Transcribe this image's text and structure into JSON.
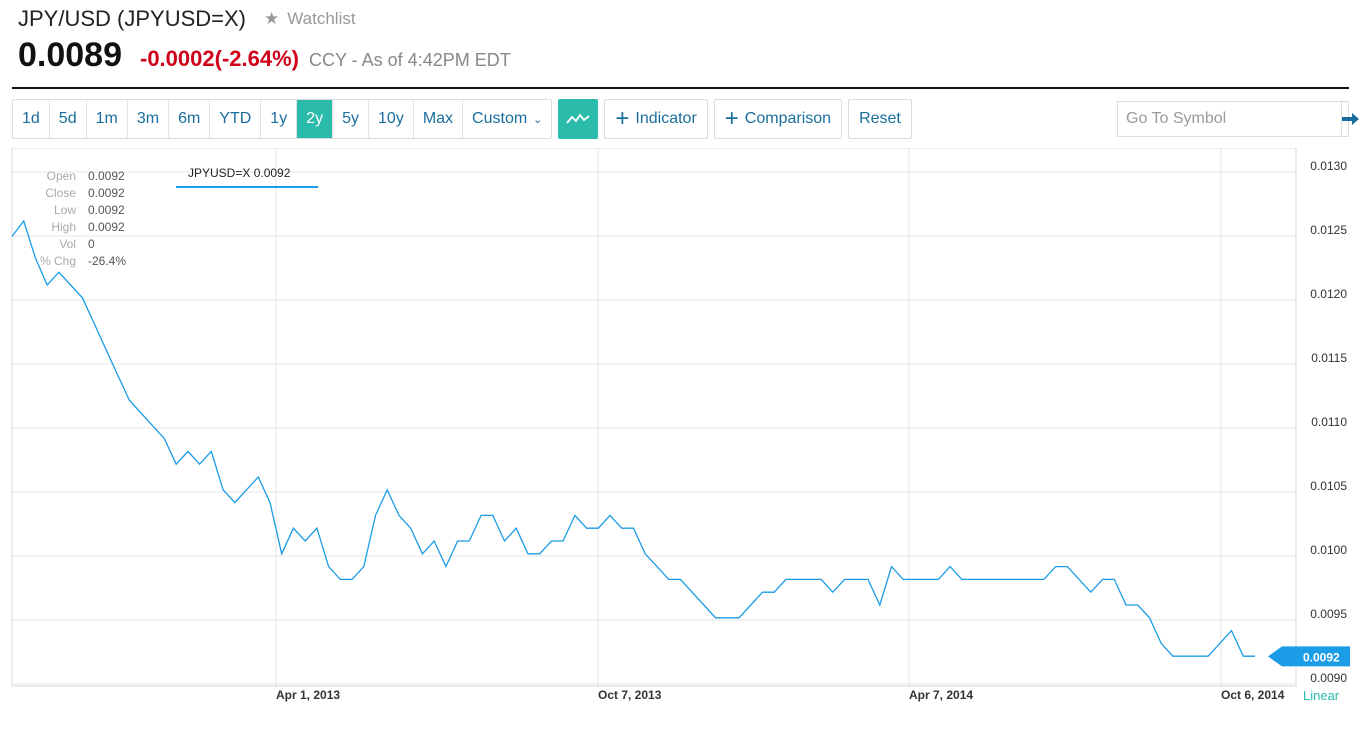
{
  "header": {
    "title": "JPY/USD (JPYUSD=X)",
    "watchlist_label": "Watchlist",
    "price": "0.0089",
    "change": "-0.0002",
    "change_pct": "(-2.64%)",
    "meta": "CCY - As of 4:42PM EDT"
  },
  "toolbar": {
    "ranges": [
      "1d",
      "5d",
      "1m",
      "3m",
      "6m",
      "YTD",
      "1y",
      "2y",
      "5y",
      "10y",
      "Max"
    ],
    "active_range": "2y",
    "custom_label": "Custom",
    "indicator_label": "Indicator",
    "comparison_label": "Comparison",
    "reset_label": "Reset",
    "goto_placeholder": "Go To Symbol"
  },
  "tooltip": {
    "series_label": "JPYUSD=X 0.0092",
    "open_label": "Open",
    "open": "0.0092",
    "close_label": "Close",
    "close": "0.0092",
    "low_label": "Low",
    "low": "0.0092",
    "high_label": "High",
    "high": "0.0092",
    "vol_label": "Vol",
    "vol": "0",
    "pctchg_label": "% Chg",
    "pctchg": "-26.4%"
  },
  "colors": {
    "line": "#1a9ce6",
    "accent": "#2bbbaa",
    "negative": "#d0021b"
  },
  "chart_data": {
    "type": "line",
    "y_ticks": [
      "0.0130",
      "0.0125",
      "0.0120",
      "0.0115",
      "0.0110",
      "0.0105",
      "0.0100",
      "0.0095",
      "0.0090"
    ],
    "x_ticks": [
      "Apr 1, 2013",
      "Oct 7, 2013",
      "Apr 7, 2014",
      "Oct 6, 2014"
    ],
    "ylim": [
      0.0089,
      0.0132
    ],
    "last_value_label": "0.0092",
    "scale_label": "Linear",
    "grid": true,
    "series": [
      {
        "values": [
          0.01245,
          0.01257,
          0.01228,
          0.01207,
          0.01217,
          0.01207,
          0.01197,
          0.01177,
          0.01157,
          0.01137,
          0.01117,
          0.01107,
          0.01097,
          0.01087,
          0.01067,
          0.01077,
          0.01067,
          0.01077,
          0.01047,
          0.01037,
          0.01047,
          0.01057,
          0.01037,
          0.00997,
          0.01017,
          0.01007,
          0.01017,
          0.00987,
          0.00977,
          0.00977,
          0.00987,
          0.01027,
          0.01047,
          0.01027,
          0.01017,
          0.00997,
          0.01007,
          0.00987,
          0.01007,
          0.01007,
          0.01027,
          0.01027,
          0.01007,
          0.01017,
          0.00997,
          0.00997,
          0.01007,
          0.01007,
          0.01027,
          0.01017,
          0.01017,
          0.01027,
          0.01017,
          0.01017,
          0.00997,
          0.00987,
          0.00977,
          0.00977,
          0.00967,
          0.00957,
          0.00947,
          0.00947,
          0.00947,
          0.00957,
          0.00967,
          0.00967,
          0.00977,
          0.00977,
          0.00977,
          0.00977,
          0.00967,
          0.00977,
          0.00977,
          0.00977,
          0.00957,
          0.00987,
          0.00977,
          0.00977,
          0.00977,
          0.00977,
          0.00987,
          0.00977,
          0.00977,
          0.00977,
          0.00977,
          0.00977,
          0.00977,
          0.00977,
          0.00977,
          0.00987,
          0.00987,
          0.00977,
          0.00967,
          0.00977,
          0.00977,
          0.00957,
          0.00957,
          0.00947,
          0.00927,
          0.00917,
          0.00917,
          0.00917,
          0.00917,
          0.00927,
          0.00937,
          0.00917,
          0.00917
        ]
      }
    ]
  }
}
